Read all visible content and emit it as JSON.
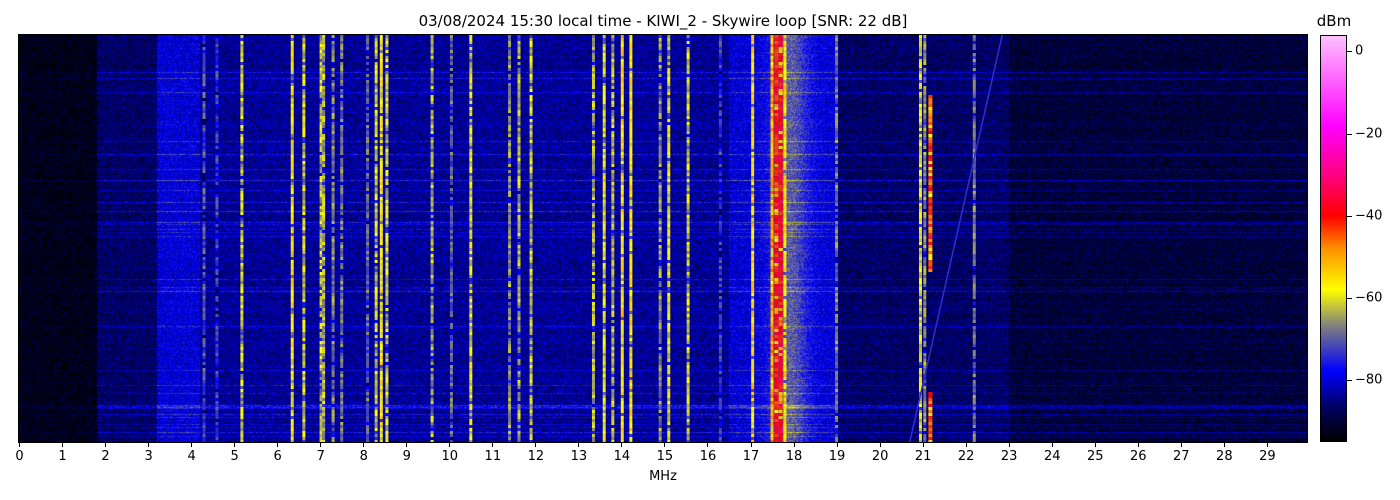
{
  "chart_data": {
    "type": "heatmap",
    "title": "03/08/2024 15:30 local time - KIWI_2 - Skywire loop [SNR: 22 dB]",
    "xlabel": "MHz",
    "ylabel": "",
    "xlim": [
      0,
      30
    ],
    "x_ticks": [
      "0",
      "1",
      "2",
      "3",
      "4",
      "5",
      "6",
      "7",
      "8",
      "9",
      "10",
      "11",
      "12",
      "13",
      "14",
      "15",
      "16",
      "17",
      "18",
      "19",
      "20",
      "21",
      "22",
      "23",
      "24",
      "25",
      "26",
      "27",
      "28",
      "29"
    ],
    "colorbar": {
      "label": "dBm",
      "range": [
        -95,
        4
      ],
      "ticks": [
        "0",
        "−20",
        "−40",
        "−60",
        "−80"
      ],
      "tick_values": [
        0,
        -20,
        -40,
        -60,
        -80
      ],
      "colormap": [
        {
          "v": -95,
          "c": "#000000"
        },
        {
          "v": -87,
          "c": "#000060"
        },
        {
          "v": -78,
          "c": "#0000ff"
        },
        {
          "v": -67,
          "c": "#808080"
        },
        {
          "v": -58,
          "c": "#ffff00"
        },
        {
          "v": -48,
          "c": "#ff9000"
        },
        {
          "v": -40,
          "c": "#ff0000"
        },
        {
          "v": -30,
          "c": "#ff0080"
        },
        {
          "v": -18,
          "c": "#ff00ff"
        },
        {
          "v": 4,
          "c": "#ffc0ff"
        }
      ]
    },
    "noise_floor": [
      {
        "from": 0,
        "to": 1.8,
        "dbm": -93
      },
      {
        "from": 1.8,
        "to": 3.2,
        "dbm": -87
      },
      {
        "from": 3.2,
        "to": 4.2,
        "dbm": -80
      },
      {
        "from": 4.2,
        "to": 16.5,
        "dbm": -84
      },
      {
        "from": 16.5,
        "to": 19,
        "dbm": -80
      },
      {
        "from": 19,
        "to": 23,
        "dbm": -87
      },
      {
        "from": 23,
        "to": 30,
        "dbm": -90
      }
    ],
    "signals": [
      {
        "mhz": 4.3,
        "dbm": -72
      },
      {
        "mhz": 4.6,
        "dbm": -74
      },
      {
        "mhz": 5.18,
        "dbm": -62
      },
      {
        "mhz": 6.35,
        "dbm": -58
      },
      {
        "mhz": 6.62,
        "dbm": -62
      },
      {
        "mhz": 7.02,
        "dbm": -62
      },
      {
        "mhz": 7.08,
        "dbm": -64
      },
      {
        "mhz": 7.3,
        "dbm": -67
      },
      {
        "mhz": 7.5,
        "dbm": -68
      },
      {
        "mhz": 8.1,
        "dbm": -70
      },
      {
        "mhz": 8.3,
        "dbm": -62
      },
      {
        "mhz": 8.42,
        "dbm": -58
      },
      {
        "mhz": 8.55,
        "dbm": -62
      },
      {
        "mhz": 9.6,
        "dbm": -64
      },
      {
        "mhz": 10.05,
        "dbm": -70
      },
      {
        "mhz": 10.5,
        "dbm": -60
      },
      {
        "mhz": 11.4,
        "dbm": -66
      },
      {
        "mhz": 11.62,
        "dbm": -64
      },
      {
        "mhz": 11.9,
        "dbm": -62
      },
      {
        "mhz": 13.35,
        "dbm": -64
      },
      {
        "mhz": 13.6,
        "dbm": -60
      },
      {
        "mhz": 13.8,
        "dbm": -64
      },
      {
        "mhz": 14.02,
        "dbm": -56
      },
      {
        "mhz": 14.22,
        "dbm": -57
      },
      {
        "mhz": 14.9,
        "dbm": -66
      },
      {
        "mhz": 15.1,
        "dbm": -60
      },
      {
        "mhz": 15.55,
        "dbm": -62
      },
      {
        "mhz": 16.3,
        "dbm": -74
      },
      {
        "mhz": 17.05,
        "dbm": -56
      },
      {
        "mhz": 17.5,
        "dbm": -50
      },
      {
        "mhz": 17.6,
        "dbm": -40
      },
      {
        "mhz": 17.7,
        "dbm": -38
      },
      {
        "mhz": 17.8,
        "dbm": -56
      },
      {
        "mhz": 19.0,
        "dbm": -68
      },
      {
        "mhz": 20.95,
        "dbm": -60
      },
      {
        "mhz": 21.05,
        "dbm": -66
      },
      {
        "mhz": 21.18,
        "dbm": -44
      },
      {
        "mhz": 22.2,
        "dbm": -68
      }
    ],
    "sweep": {
      "start_mhz": 20.7,
      "end_mhz": 22.85,
      "dbm": -74
    }
  }
}
